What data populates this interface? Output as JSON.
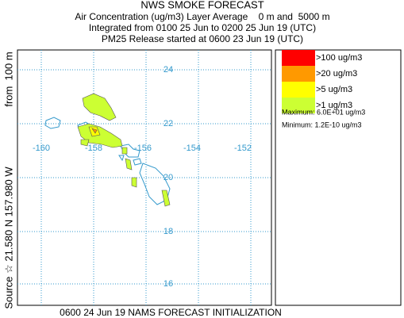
{
  "header": {
    "title": "NWS SMOKE FORECAST",
    "lines": [
      "Air Concentration (ug/m3) Layer Average    0 m and  5000 m",
      "Integrated from 0100 25 Jun to 0200 25 Jun 19 (UTC)",
      "PM25 Release started at 0600 23 Jun 19 (UTC)"
    ]
  },
  "map": {
    "lon_labels": [
      "-160",
      "-158",
      "-156",
      "-154",
      "-152"
    ],
    "lat_labels": [
      "24",
      "22",
      "20",
      "18",
      "16"
    ],
    "source_label": "Source ☆ 21.580 N 157.980 W",
    "height_label": "from  100 m"
  },
  "legend": {
    "items": [
      {
        "label": ">100 ug/m3",
        "color": "#ff0000"
      },
      {
        "label": ">20 ug/m3",
        "color": "#ff9900"
      },
      {
        "label": ">5 ug/m3",
        "color": "#ffff00"
      },
      {
        "label": ">1 ug/m3",
        "color": "#ccff33"
      }
    ],
    "maximum": "Maximum: 6.0E+01 ug/m3",
    "minimum": "Minimum: 1.2E-10 ug/m3"
  },
  "footer": "0600 24 Jun 19 NAMS FORECAST INITIALIZATION"
}
